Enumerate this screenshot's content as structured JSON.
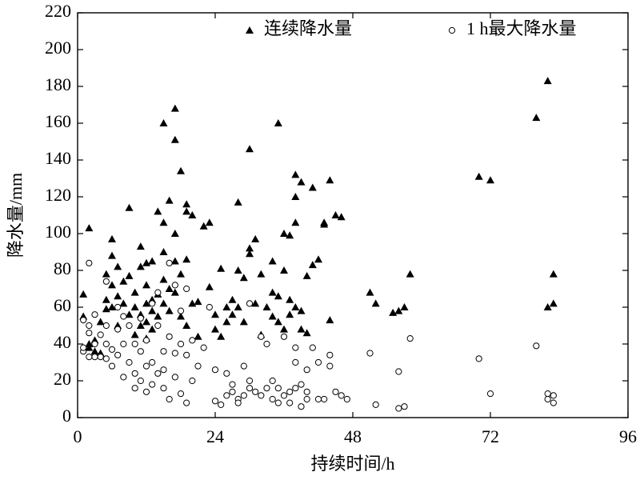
{
  "chart_data": {
    "type": "scatter",
    "x_label": "持续时间/h",
    "y_label": "降水量/mm",
    "xlim": [
      0,
      96
    ],
    "xticks": [
      0,
      24,
      48,
      72,
      96
    ],
    "ylim": [
      0,
      220
    ],
    "yticks": [
      0,
      20,
      40,
      60,
      80,
      100,
      120,
      140,
      160,
      180,
      200,
      220
    ],
    "legend": "top",
    "series": [
      {
        "name": "连续降水量",
        "marker": "triangle",
        "color": "#000000",
        "x": [
          2,
          1,
          1,
          2,
          3,
          2,
          3,
          4,
          4,
          5,
          5,
          5,
          6,
          6,
          6,
          6,
          7,
          7,
          7,
          8,
          8,
          9,
          9,
          9,
          10,
          10,
          10,
          11,
          11,
          11,
          11,
          12,
          12,
          12,
          12,
          12,
          13,
          13,
          13,
          13,
          14,
          14,
          14,
          15,
          15,
          15,
          15,
          15,
          16,
          16,
          16,
          17,
          17,
          17,
          17,
          17,
          18,
          18,
          18,
          19,
          19,
          19,
          19,
          20,
          20,
          21,
          21,
          22,
          23,
          23,
          24,
          24,
          25,
          25,
          26,
          26,
          27,
          27,
          28,
          28,
          28,
          29,
          29,
          30,
          30,
          30,
          31,
          31,
          32,
          32,
          33,
          34,
          34,
          34,
          35,
          35,
          35,
          36,
          36,
          36,
          37,
          37,
          37,
          38,
          38,
          38,
          38,
          39,
          39,
          39,
          40,
          40,
          41,
          41,
          42,
          43,
          43,
          44,
          44,
          45,
          46,
          51,
          52,
          55,
          56,
          57,
          58,
          70,
          72,
          80,
          82,
          82,
          83,
          83
        ],
        "y": [
          103,
          67,
          55,
          38,
          36,
          40,
          42,
          35,
          52,
          59,
          64,
          78,
          97,
          88,
          72,
          60,
          66,
          82,
          50,
          74,
          62,
          114,
          77,
          56,
          68,
          45,
          60,
          56,
          50,
          82,
          93,
          52,
          62,
          72,
          84,
          43,
          64,
          58,
          48,
          85,
          55,
          112,
          67,
          106,
          160,
          90,
          75,
          62,
          118,
          70,
          58,
          168,
          151,
          100,
          85,
          68,
          134,
          78,
          55,
          116,
          112,
          86,
          50,
          110,
          62,
          63,
          44,
          104,
          106,
          71,
          56,
          48,
          81,
          44,
          60,
          52,
          64,
          56,
          117,
          80,
          60,
          76,
          52,
          92,
          89,
          146,
          97,
          62,
          78,
          45,
          60,
          85,
          68,
          55,
          160,
          52,
          66,
          100,
          80,
          48,
          99,
          64,
          56,
          132,
          120,
          106,
          60,
          128,
          58,
          48,
          77,
          46,
          125,
          83,
          86,
          106,
          105,
          129,
          53,
          110,
          109,
          68,
          62,
          57,
          58,
          60,
          78,
          131,
          129,
          163,
          60,
          183,
          62,
          78
        ]
      },
      {
        "name": "1 h最大降水量",
        "marker": "circle",
        "color": "#000000",
        "x": [
          1,
          1,
          1,
          2,
          2,
          2,
          2,
          3,
          3,
          3,
          4,
          4,
          5,
          5,
          5,
          5,
          6,
          6,
          7,
          7,
          7,
          8,
          8,
          8,
          9,
          9,
          10,
          10,
          10,
          11,
          11,
          11,
          12,
          12,
          12,
          13,
          13,
          13,
          14,
          14,
          14,
          15,
          15,
          15,
          16,
          16,
          16,
          17,
          17,
          17,
          18,
          18,
          18,
          19,
          19,
          19,
          20,
          20,
          21,
          22,
          23,
          24,
          24,
          25,
          26,
          26,
          27,
          27,
          28,
          28,
          29,
          29,
          30,
          30,
          30,
          31,
          32,
          32,
          33,
          33,
          34,
          34,
          35,
          35,
          36,
          36,
          37,
          37,
          38,
          38,
          38,
          39,
          39,
          40,
          40,
          40,
          41,
          42,
          42,
          43,
          44,
          44,
          45,
          46,
          47,
          51,
          52,
          56,
          56,
          57,
          58,
          70,
          72,
          80,
          82,
          82,
          83,
          83
        ],
        "y": [
          36,
          38,
          53,
          84,
          50,
          46,
          33,
          56,
          40,
          33,
          45,
          33,
          32,
          74,
          50,
          40,
          37,
          28,
          60,
          34,
          48,
          22,
          40,
          55,
          30,
          50,
          40,
          16,
          24,
          36,
          20,
          54,
          14,
          28,
          42,
          18,
          62,
          30,
          68,
          24,
          50,
          16,
          36,
          26,
          10,
          44,
          84,
          72,
          22,
          35,
          13,
          40,
          58,
          8,
          34,
          70,
          20,
          42,
          28,
          38,
          60,
          9,
          26,
          7,
          24,
          12,
          14,
          18,
          10,
          8,
          28,
          12,
          62,
          16,
          20,
          14,
          44,
          12,
          40,
          16,
          20,
          10,
          8,
          16,
          12,
          44,
          8,
          14,
          38,
          30,
          16,
          6,
          18,
          10,
          14,
          26,
          38,
          10,
          30,
          10,
          28,
          34,
          14,
          12,
          10,
          35,
          7,
          5,
          25,
          6,
          43,
          32,
          13,
          39,
          10,
          13,
          8,
          12
        ]
      }
    ]
  }
}
